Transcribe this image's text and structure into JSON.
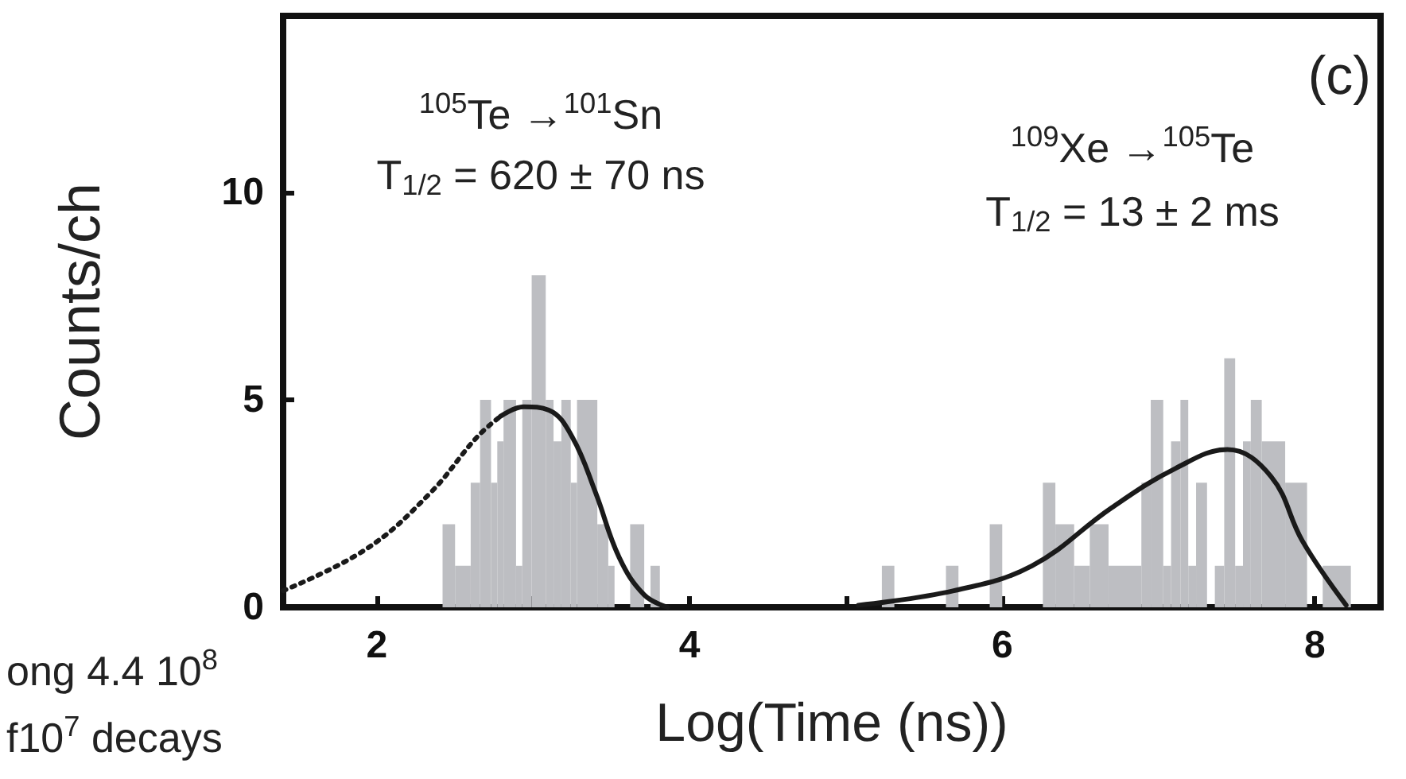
{
  "chart_data": {
    "type": "histogram",
    "xlabel": "Log(Time (ns))",
    "ylabel": "Counts/ch",
    "annotations": [
      "(c)",
      "$^{105}$Te →$^{101}$Sn",
      "T$_{1/2}$ = 620 ± 70 ns",
      "$^{109}$Xe →$^{105}$Te",
      "T$_{1/2}$ = 13 ± 2 ms",
      "ong 4.4 10$^{8}$",
      "f10$^{7}$ decays"
    ],
    "xlim": [
      1.4,
      8.42
    ],
    "ylim": [
      0,
      14.25
    ],
    "xticks": [
      2,
      {
        "value": 3,
        "label": null
      },
      4,
      {
        "value": 5,
        "label": null
      },
      6,
      {
        "value": 7,
        "label": null
      },
      8
    ],
    "yticks": [
      0,
      5,
      10
    ],
    "grid": false,
    "series": [
      {
        "color": "#bdbec2",
        "bins": [
          2.42,
          2.5,
          2.6,
          2.66,
          2.73,
          2.77,
          2.81,
          2.89,
          2.93,
          2.99,
          3.08,
          3.13,
          3.18,
          3.24,
          3.28,
          3.41,
          3.48,
          3.52,
          3.62,
          3.71,
          3.75,
          3.81,
          5.23,
          5.31,
          5.64,
          5.72,
          5.92,
          6.0,
          6.26,
          6.34,
          6.46,
          6.56,
          6.68,
          6.89,
          6.95,
          7.03,
          7.08,
          7.14,
          7.19,
          7.24,
          7.31,
          7.36,
          7.42,
          7.49,
          7.54,
          7.59,
          7.66,
          7.81,
          7.95,
          8.05,
          8.23
        ],
        "values": [
          2,
          1,
          3,
          5,
          3,
          4,
          5,
          1,
          5,
          8,
          5,
          4,
          5,
          3,
          5,
          2,
          1,
          0,
          2,
          0,
          1,
          0,
          1,
          0,
          1,
          0,
          2,
          0,
          3,
          2,
          1,
          2,
          1,
          3,
          5,
          1,
          4,
          5,
          1,
          3,
          0,
          1,
          6,
          1,
          4,
          5,
          4,
          3,
          0,
          1
        ]
      },
      {
        "type": "line",
        "color": "#1a1a1a",
        "line_style": "dotted",
        "x": [
          1.4,
          1.93,
          2.34,
          2.64,
          2.79
        ],
        "values": [
          0.4,
          1.4,
          2.75,
          4.1,
          4.6
        ]
      },
      {
        "type": "line",
        "color": "#1a1a1a",
        "line_style": "solid",
        "x": [
          2.79,
          2.94,
          3.1,
          3.25,
          3.4,
          3.55,
          3.71,
          3.86
        ],
        "values": [
          4.6,
          4.83,
          4.75,
          4.1,
          2.75,
          1.2,
          0.3,
          0
        ]
      },
      {
        "type": "line",
        "color": "#1a1a1a",
        "line_style": "solid",
        "x": [
          5.08,
          5.69,
          6.19,
          6.7,
          7.11,
          7.44,
          7.72,
          7.92,
          8.2
        ],
        "values": [
          0.05,
          0.4,
          1.0,
          2.4,
          3.35,
          3.8,
          3.15,
          1.6,
          0.05
        ]
      }
    ]
  }
}
